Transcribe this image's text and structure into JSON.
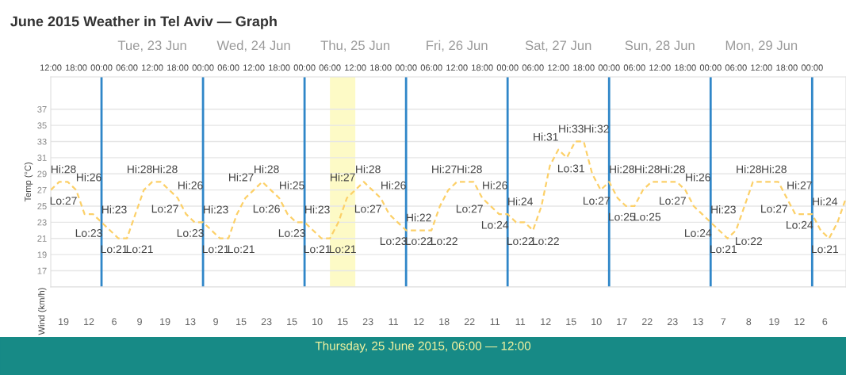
{
  "chart_data": [
    {
      "type": "line",
      "title": "June 2015 Weather in Tel Aviv — Graph",
      "ylabel": "Temp (°C)",
      "series": [
        {
          "color": "#fcd068",
          "x": [
            "2015-06-22T12:00",
            "2015-06-22T14:00",
            "2015-06-22T16:00",
            "2015-06-22T18:00",
            "2015-06-22T20:00",
            "2015-06-22T22:00",
            "2015-06-23T00:00",
            "2015-06-23T02:00",
            "2015-06-23T04:00",
            "2015-06-23T06:00",
            "2015-06-23T08:00",
            "2015-06-23T10:00",
            "2015-06-23T12:00",
            "2015-06-23T14:00",
            "2015-06-23T16:00",
            "2015-06-23T18:00",
            "2015-06-23T20:00",
            "2015-06-23T22:00",
            "2015-06-24T00:00",
            "2015-06-24T02:00",
            "2015-06-24T04:00",
            "2015-06-24T06:00",
            "2015-06-24T08:00",
            "2015-06-24T10:00",
            "2015-06-24T12:00",
            "2015-06-24T14:00",
            "2015-06-24T16:00",
            "2015-06-24T18:00",
            "2015-06-24T20:00",
            "2015-06-24T22:00",
            "2015-06-25T00:00",
            "2015-06-25T02:00",
            "2015-06-25T04:00",
            "2015-06-25T06:00",
            "2015-06-25T08:00",
            "2015-06-25T10:00",
            "2015-06-25T12:00",
            "2015-06-25T14:00",
            "2015-06-25T16:00",
            "2015-06-25T18:00",
            "2015-06-25T20:00",
            "2015-06-25T22:00",
            "2015-06-26T00:00",
            "2015-06-26T02:00",
            "2015-06-26T04:00",
            "2015-06-26T06:00",
            "2015-06-26T08:00",
            "2015-06-26T10:00",
            "2015-06-26T12:00",
            "2015-06-26T14:00",
            "2015-06-26T16:00",
            "2015-06-26T18:00",
            "2015-06-26T20:00",
            "2015-06-26T22:00",
            "2015-06-27T00:00",
            "2015-06-27T02:00",
            "2015-06-27T04:00",
            "2015-06-27T06:00",
            "2015-06-27T08:00",
            "2015-06-27T10:00",
            "2015-06-27T12:00",
            "2015-06-27T14:00",
            "2015-06-27T16:00",
            "2015-06-27T18:00",
            "2015-06-27T20:00",
            "2015-06-27T22:00",
            "2015-06-28T00:00",
            "2015-06-28T02:00",
            "2015-06-28T04:00",
            "2015-06-28T06:00",
            "2015-06-28T08:00",
            "2015-06-28T10:00",
            "2015-06-28T12:00",
            "2015-06-28T14:00",
            "2015-06-28T16:00",
            "2015-06-28T18:00",
            "2015-06-28T20:00",
            "2015-06-28T22:00",
            "2015-06-29T00:00",
            "2015-06-29T02:00",
            "2015-06-29T04:00",
            "2015-06-29T06:00",
            "2015-06-29T08:00",
            "2015-06-29T10:00",
            "2015-06-29T12:00",
            "2015-06-29T14:00",
            "2015-06-29T16:00",
            "2015-06-29T18:00",
            "2015-06-29T20:00",
            "2015-06-29T22:00",
            "2015-06-30T00:00",
            "2015-06-30T02:00",
            "2015-06-30T04:00",
            "2015-06-30T06:00",
            "2015-06-30T08:00"
          ],
          "values": [
            27,
            28,
            28,
            27,
            24,
            24,
            23,
            22,
            21,
            21,
            24,
            27,
            28,
            28,
            27,
            26,
            24,
            23,
            23,
            22,
            21,
            21,
            24,
            26,
            27,
            28,
            27,
            26,
            24,
            23,
            23,
            22,
            21,
            21,
            23,
            26,
            27,
            28,
            27,
            26,
            24,
            23,
            22,
            22,
            22,
            22,
            25,
            27,
            28,
            28,
            28,
            26,
            25,
            24,
            24,
            23,
            23,
            22,
            25,
            30,
            32,
            31,
            33,
            33,
            29,
            27,
            28,
            26,
            25,
            25,
            27,
            28,
            28,
            28,
            28,
            27,
            25,
            24,
            23,
            22,
            21,
            22,
            25,
            28,
            28,
            28,
            28,
            26,
            24,
            24,
            24,
            22,
            21,
            23,
            26
          ]
        }
      ],
      "line_style": "dashed",
      "marker": "none",
      "grid": "y",
      "xlim": [
        "2015-06-22T12:00",
        "2015-06-30T08:00"
      ],
      "xticks": [
        {
          "value": "2015-06-22T12:00",
          "label": "12:00"
        },
        {
          "value": "2015-06-22T18:00",
          "label": "18:00"
        },
        {
          "value": "2015-06-23T00:00",
          "label": "00:00"
        },
        {
          "value": "2015-06-23T06:00",
          "label": "06:00"
        },
        {
          "value": "2015-06-23T12:00",
          "label": "12:00"
        },
        {
          "value": "2015-06-23T18:00",
          "label": "18:00"
        },
        {
          "value": "2015-06-24T00:00",
          "label": "00:00"
        },
        {
          "value": "2015-06-24T06:00",
          "label": "06:00"
        },
        {
          "value": "2015-06-24T12:00",
          "label": "12:00"
        },
        {
          "value": "2015-06-24T18:00",
          "label": "18:00"
        },
        {
          "value": "2015-06-25T00:00",
          "label": "00:00"
        },
        {
          "value": "2015-06-25T06:00",
          "label": "06:00"
        },
        {
          "value": "2015-06-25T12:00",
          "label": "12:00"
        },
        {
          "value": "2015-06-25T18:00",
          "label": "18:00"
        },
        {
          "value": "2015-06-26T00:00",
          "label": "00:00"
        },
        {
          "value": "2015-06-26T06:00",
          "label": "06:00"
        },
        {
          "value": "2015-06-26T12:00",
          "label": "12:00"
        },
        {
          "value": "2015-06-26T18:00",
          "label": "18:00"
        },
        {
          "value": "2015-06-27T00:00",
          "label": "00:00"
        },
        {
          "value": "2015-06-27T06:00",
          "label": "06:00"
        },
        {
          "value": "2015-06-27T12:00",
          "label": "12:00"
        },
        {
          "value": "2015-06-27T18:00",
          "label": "18:00"
        },
        {
          "value": "2015-06-28T00:00",
          "label": "00:00"
        },
        {
          "value": "2015-06-28T06:00",
          "label": "06:00"
        },
        {
          "value": "2015-06-28T12:00",
          "label": "12:00"
        },
        {
          "value": "2015-06-28T18:00",
          "label": "18:00"
        },
        {
          "value": "2015-06-29T00:00",
          "label": "00:00"
        },
        {
          "value": "2015-06-29T06:00",
          "label": "06:00"
        },
        {
          "value": "2015-06-29T12:00",
          "label": "12:00"
        },
        {
          "value": "2015-06-29T18:00",
          "label": "18:00"
        },
        {
          "value": "2015-06-30T00:00",
          "label": "00:00"
        }
      ],
      "x2lim": [
        "2015-06-22T12:00",
        "2015-06-30T08:00"
      ],
      "x2ticks": [
        {
          "value": "2015-06-23T12:00",
          "label": "Tue, 23 Jun"
        },
        {
          "value": "2015-06-24T12:00",
          "label": "Wed, 24 Jun"
        },
        {
          "value": "2015-06-25T12:00",
          "label": "Thu, 25 Jun"
        },
        {
          "value": "2015-06-26T12:00",
          "label": "Fri, 26 Jun"
        },
        {
          "value": "2015-06-27T12:00",
          "label": "Sat, 27 Jun"
        },
        {
          "value": "2015-06-28T12:00",
          "label": "Sun, 28 Jun"
        },
        {
          "value": "2015-06-29T12:00",
          "label": "Mon, 29 Jun"
        }
      ],
      "ylim": [
        15,
        41
      ],
      "yticks": [
        17,
        19,
        21,
        23,
        25,
        27,
        29,
        31,
        33,
        35,
        37
      ],
      "ref_lines": [
        {
          "axis": "x",
          "value": "2015-06-23",
          "color": "#2f86c8"
        },
        {
          "axis": "x",
          "value": "2015-06-24",
          "color": "#2f86c8"
        },
        {
          "axis": "x",
          "value": "2015-06-25",
          "color": "#2f86c8"
        },
        {
          "axis": "x",
          "value": "2015-06-26",
          "color": "#2f86c8"
        },
        {
          "axis": "x",
          "value": "2015-06-27",
          "color": "#2f86c8"
        },
        {
          "axis": "x",
          "value": "2015-06-28",
          "color": "#2f86c8"
        },
        {
          "axis": "x",
          "value": "2015-06-29",
          "color": "#2f86c8"
        },
        {
          "axis": "x",
          "value": "2015-06-30",
          "color": "#2f86c8"
        }
      ],
      "bands": [
        {
          "axis": "x",
          "from": "2015-06-25T06:00",
          "to": "2015-06-25T12:00",
          "color": "#fdfac6"
        }
      ],
      "annotations": [
        "Hi:28",
        "Lo:27",
        "Hi:26",
        "Lo:23",
        "Hi:23",
        "Lo:21",
        "Hi:28",
        "Lo:21",
        "Hi:28",
        "Lo:27",
        "Hi:26",
        "Lo:23",
        "Hi:23",
        "Lo:21",
        "Hi:27",
        "Lo:21",
        "Hi:28",
        "Lo:26",
        "Hi:25",
        "Lo:23",
        "Hi:23",
        "Lo:21",
        "Hi:27",
        "Lo:21",
        "Hi:28",
        "Lo:27",
        "Hi:26",
        "Lo:23",
        "Hi:22",
        "Lo:22",
        "Hi:27",
        "Lo:22",
        "Hi:28",
        "Lo:27",
        "Hi:26",
        "Lo:24",
        "Hi:24",
        "Lo:22",
        "Hi:31",
        "Lo:22",
        "Hi:33",
        "Lo:31",
        "Hi:32",
        "Lo:27",
        "Hi:28",
        "Lo:25",
        "Hi:28",
        "Lo:25",
        "Hi:28",
        "Lo:27",
        "Hi:26",
        "Lo:24",
        "Hi:23",
        "Lo:21",
        "Hi:28",
        "Lo:22",
        "Hi:28",
        "Lo:27",
        "Hi:27",
        "Lo:24",
        "Hi:24",
        "Lo:21"
      ]
    },
    {
      "type": "other",
      "ylabel": "Wind (km/h)",
      "categories": [
        null,
        null,
        null,
        null,
        null,
        null,
        null,
        null,
        null,
        null,
        null,
        null,
        null,
        null,
        null,
        null,
        null,
        null,
        null,
        null,
        null,
        null,
        null,
        null,
        null,
        null,
        null,
        null,
        null,
        null,
        null
      ],
      "values": [
        19,
        12,
        6,
        9,
        19,
        13,
        9,
        15,
        23,
        15,
        10,
        15,
        23,
        11,
        12,
        18,
        22,
        11,
        11,
        12,
        15,
        10,
        17,
        22,
        23,
        13,
        7,
        8,
        19,
        12,
        6
      ],
      "data_labels": true,
      "annotations": [
        "Thursday, 25 June 2015, 06:00 — 12:00"
      ]
    }
  ]
}
